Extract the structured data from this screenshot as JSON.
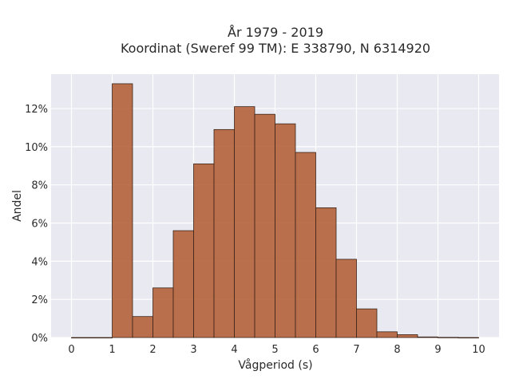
{
  "chart_data": {
    "type": "bar",
    "title": "År 1979 - 2019",
    "subtitle": "Koordinat (Sweref 99 TM): E 338790, N 6314920",
    "xlabel": "Vågperiod (s)",
    "ylabel": "Andel",
    "bin_width": 0.5,
    "bins_start": [
      0,
      0.5,
      1,
      1.5,
      2,
      2.5,
      3,
      3.5,
      4,
      4.5,
      5,
      5.5,
      6,
      6.5,
      7,
      7.5,
      8,
      8.5,
      9,
      9.5
    ],
    "values": [
      0.0,
      0.0,
      13.3,
      1.1,
      2.6,
      5.6,
      9.1,
      10.9,
      12.1,
      11.7,
      11.2,
      9.7,
      6.8,
      4.1,
      1.5,
      0.3,
      0.15,
      0.03,
      0.01,
      0.0
    ],
    "xlim": [
      -0.5,
      10.5
    ],
    "ylim": [
      0,
      13.8
    ],
    "xticks": [
      0,
      1,
      2,
      3,
      4,
      5,
      6,
      7,
      8,
      9,
      10
    ],
    "xtick_labels": [
      "0",
      "1",
      "2",
      "3",
      "4",
      "5",
      "6",
      "7",
      "8",
      "9",
      "10"
    ],
    "yticks": [
      0,
      2,
      4,
      6,
      8,
      10,
      12
    ],
    "ytick_labels": [
      "0%",
      "2%",
      "4%",
      "6%",
      "8%",
      "10%",
      "12%"
    ],
    "grid": true,
    "colors": {
      "bar": "#b5623a",
      "bar_edge": "#3a2418",
      "plot_bg": "#e9e9f1",
      "grid": "#ffffff"
    }
  }
}
